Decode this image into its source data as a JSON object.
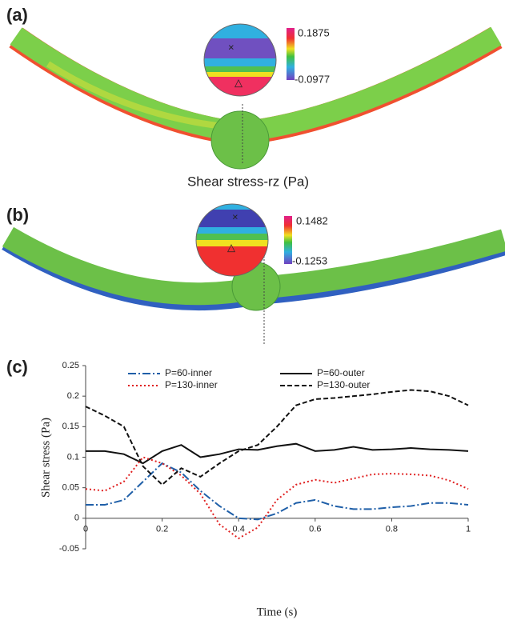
{
  "panels": [
    {
      "label": "(a)",
      "max": "0.1875",
      "min": "-0.0977",
      "caption": "Shear stress-rz (Pa)"
    },
    {
      "label": "(b)",
      "max": "0.1482",
      "min": "-0.1253"
    }
  ],
  "chart_data": {
    "type": "line",
    "label": "(c)",
    "x_label": "Time (s)",
    "y_label": "Shear stress (Pa)",
    "x": [
      0,
      0.05,
      0.1,
      0.15,
      0.2,
      0.25,
      0.3,
      0.35,
      0.4,
      0.45,
      0.5,
      0.55,
      0.6,
      0.65,
      0.7,
      0.75,
      0.8,
      0.85,
      0.9,
      0.95,
      1
    ],
    "series": [
      {
        "name": "P=60-inner",
        "color": "#1f5fa8",
        "dash": "10 3 2 3",
        "values": [
          0.022,
          0.022,
          0.03,
          0.06,
          0.09,
          0.075,
          0.045,
          0.02,
          0.0,
          -0.002,
          0.008,
          0.025,
          0.03,
          0.02,
          0.015,
          0.015,
          0.018,
          0.02,
          0.025,
          0.025,
          0.022
        ]
      },
      {
        "name": "P=60-outer",
        "color": "#111111",
        "dash": "none",
        "values": [
          0.11,
          0.11,
          0.105,
          0.09,
          0.11,
          0.12,
          0.1,
          0.105,
          0.113,
          0.112,
          0.118,
          0.122,
          0.11,
          0.112,
          0.117,
          0.112,
          0.113,
          0.115,
          0.113,
          0.112,
          0.11
        ]
      },
      {
        "name": "P=130-inner",
        "color": "#e02020",
        "dash": "2 3",
        "values": [
          0.048,
          0.045,
          0.06,
          0.1,
          0.09,
          0.07,
          0.04,
          -0.01,
          -0.033,
          -0.015,
          0.03,
          0.055,
          0.063,
          0.058,
          0.065,
          0.072,
          0.073,
          0.072,
          0.07,
          0.062,
          0.048
        ]
      },
      {
        "name": "P=130-outer",
        "color": "#111111",
        "dash": "6 3",
        "values": [
          0.183,
          0.168,
          0.15,
          0.085,
          0.055,
          0.082,
          0.068,
          0.09,
          0.11,
          0.12,
          0.15,
          0.185,
          0.195,
          0.197,
          0.2,
          0.203,
          0.207,
          0.21,
          0.208,
          0.2,
          0.185
        ]
      }
    ],
    "xlim": [
      0,
      1
    ],
    "xticks": [
      0,
      0.2,
      0.4,
      0.6,
      0.8,
      1
    ],
    "ylim": [
      -0.05,
      0.25
    ],
    "yticks": [
      -0.05,
      0,
      0.05,
      0.1,
      0.15,
      0.2,
      0.25
    ]
  }
}
